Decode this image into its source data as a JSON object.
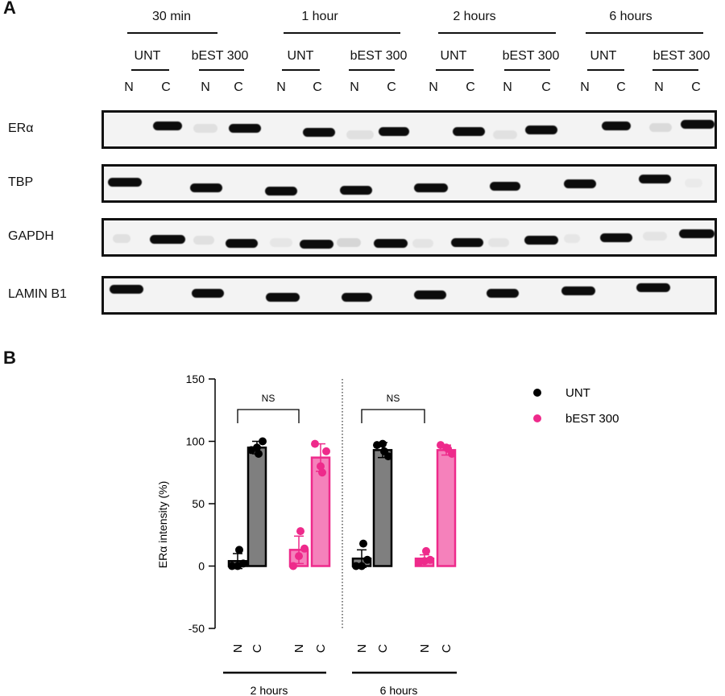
{
  "panel_a": {
    "letter": "A",
    "timepoints": [
      "30 min",
      "1 hour",
      "2 hours",
      "6 hours"
    ],
    "treatments": [
      "UNT",
      "bEST 300"
    ],
    "fractions": [
      "N",
      "C"
    ],
    "blots": [
      {
        "label": "ERα"
      },
      {
        "label": "TBP"
      },
      {
        "label": "GAPDH"
      },
      {
        "label": "LAMIN B1"
      }
    ]
  },
  "panel_b": {
    "letter": "B",
    "sig_label": "NS",
    "group_labels": [
      "2 hours",
      "6 hours"
    ],
    "tick_labels": [
      "N",
      "C",
      "N",
      "C",
      "N",
      "C",
      "N",
      "C"
    ]
  },
  "chart_data": {
    "type": "bar",
    "ylabel": "ERα intensity (%)",
    "ylim": [
      -50,
      150
    ],
    "yticks": [
      -50,
      0,
      50,
      100,
      150
    ],
    "categories": [
      "2 hours N",
      "2 hours C",
      "6 hours N",
      "6 hours C"
    ],
    "series": [
      {
        "name": "UNT",
        "color": "#000000",
        "fill": "#7f7f7f",
        "values": [
          4,
          95,
          6,
          93
        ],
        "error": [
          6,
          5,
          7,
          6
        ],
        "points": [
          [
            0,
            0,
            2,
            13
          ],
          [
            93,
            95,
            100,
            90
          ],
          [
            0,
            0,
            5,
            18
          ],
          [
            97,
            98,
            88,
            92
          ]
        ]
      },
      {
        "name": "bEST 300",
        "color": "#ee2a8b",
        "fill": "#f581bb",
        "values": [
          13,
          87,
          6,
          93
        ],
        "error": [
          11,
          11,
          3,
          4
        ],
        "points": [
          [
            0,
            8,
            14,
            28
          ],
          [
            98,
            80,
            92,
            75
          ],
          [
            3,
            4,
            5,
            12
          ],
          [
            97,
            95,
            90,
            94
          ]
        ]
      }
    ],
    "legend": "top-right"
  }
}
